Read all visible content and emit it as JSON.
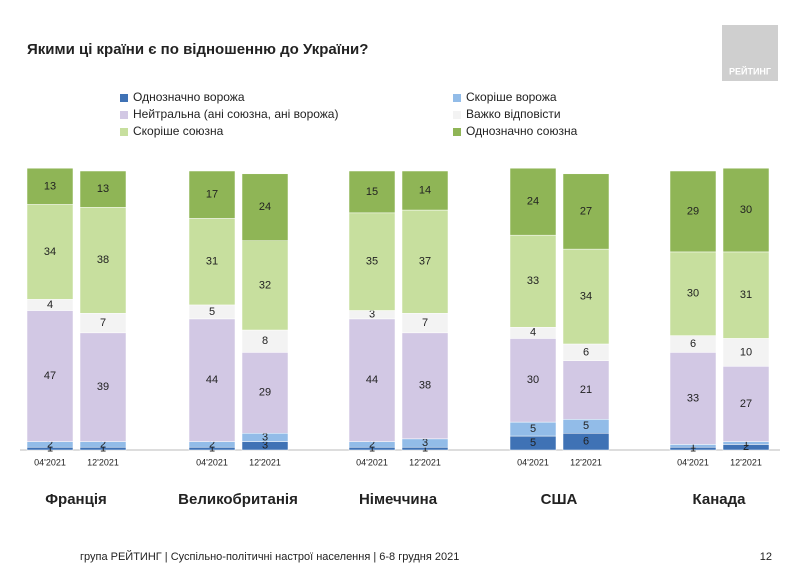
{
  "chart_data": {
    "type": "stacked-bar",
    "title": "Якими ці країни є по відношенню до України?",
    "logo": "РЕЙТИНГ",
    "footer": "група РЕЙТИНГ | Суспільно-політичні настрої населення  | 6-8 грудня 2021",
    "page_number": "12",
    "groups": [
      "Франція",
      "Великобританія",
      "Німеччина",
      "США",
      "Канада"
    ],
    "categories": [
      "04'2021",
      "12'2021",
      "04'2021",
      "12'2021",
      "04'2021",
      "12'2021",
      "04'2021",
      "12'2021",
      "04'2021",
      "12'2021"
    ],
    "series": [
      {
        "name": "Однозначно ворожа",
        "color": "#3f72b5",
        "values": [
          1,
          1,
          1,
          3,
          1,
          1,
          5,
          6,
          1,
          2
        ]
      },
      {
        "name": "Скоріше ворожа",
        "color": "#92bce8",
        "values": [
          2,
          2,
          2,
          3,
          2,
          3,
          5,
          5,
          1,
          1
        ]
      },
      {
        "name": "Нейтральна (ані союзна, ані ворожа)",
        "color": "#d2c8e4",
        "values": [
          47,
          39,
          44,
          29,
          44,
          38,
          30,
          21,
          33,
          27
        ]
      },
      {
        "name": "Важко відповісти",
        "color": "#f3f3f3",
        "values": [
          4,
          7,
          5,
          8,
          3,
          7,
          4,
          6,
          6,
          10
        ]
      },
      {
        "name": "Скоріше союзна",
        "color": "#c7df9e",
        "values": [
          34,
          38,
          31,
          32,
          35,
          37,
          33,
          34,
          30,
          31
        ]
      },
      {
        "name": "Однозначно союзна",
        "color": "#8fb556",
        "values": [
          13,
          13,
          17,
          24,
          15,
          14,
          24,
          27,
          29,
          30
        ]
      }
    ]
  }
}
